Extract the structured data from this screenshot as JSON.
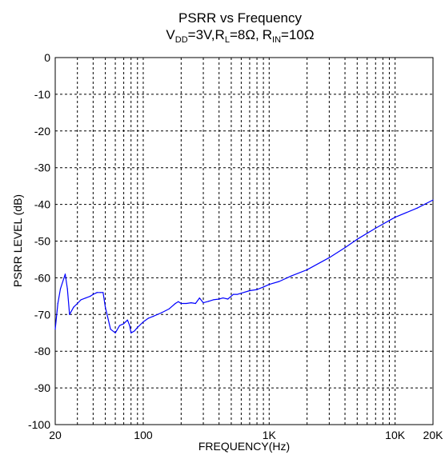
{
  "chart_data": {
    "type": "line",
    "title_line1": "PSRR vs Frequency",
    "title_line2": {
      "vdd_sym": "V",
      "vdd_sub": "DD",
      "vdd_val": "=3V,",
      "rl_sym": "R",
      "rl_sub": "L",
      "rl_val": "=8Ω,",
      "rin_sym": "R",
      "rin_sub": "IN",
      "rin_val": "=10Ω"
    },
    "xlabel": "FREQUENCY(Hz)",
    "ylabel": "PSRR LEVEL (dB)",
    "x_scale": "log",
    "xlim": [
      20,
      20000
    ],
    "ylim": [
      -100,
      0
    ],
    "grid": true,
    "x_tick_labels": [
      "20",
      "100",
      "1K",
      "10K",
      "20K"
    ],
    "y_tick_labels": [
      "0",
      "-10",
      "-20",
      "-30",
      "-40",
      "-50",
      "-60",
      "-70",
      "-80",
      "-90",
      "-100"
    ],
    "line_color": "#0000ff",
    "series": [
      {
        "x": [
          20,
          21,
          22,
          24,
          25,
          26,
          28,
          30,
          32,
          35,
          38,
          40,
          43,
          46,
          48,
          50,
          55,
          60,
          65,
          70,
          75,
          78,
          80,
          85,
          90,
          100,
          110,
          120,
          140,
          160,
          180,
          190,
          200,
          220,
          240,
          260,
          280,
          300,
          330,
          360,
          400,
          430,
          470,
          520,
          560,
          600,
          700,
          800,
          900,
          1000,
          1200,
          1500,
          2000,
          3000,
          4000,
          5000,
          7000,
          10000,
          15000,
          20000
        ],
        "y": [
          -74,
          -67,
          -63,
          -59,
          -63,
          -70,
          -68,
          -67,
          -66,
          -65.5,
          -65,
          -64.5,
          -64,
          -64,
          -64,
          -68,
          -74,
          -75,
          -73,
          -72.5,
          -71.5,
          -73,
          -75,
          -74.5,
          -73.5,
          -72,
          -71,
          -70.5,
          -69.5,
          -68.5,
          -67,
          -66.5,
          -67,
          -67,
          -66.8,
          -67,
          -65.5,
          -66.8,
          -66.4,
          -66,
          -65.8,
          -65.5,
          -65.8,
          -64.5,
          -64.5,
          -64.2,
          -63.5,
          -63.2,
          -62.5,
          -61.8,
          -61,
          -59.5,
          -57.8,
          -54.5,
          -51.8,
          -49.5,
          -46.5,
          -43.5,
          -41,
          -38.8
        ]
      }
    ]
  }
}
